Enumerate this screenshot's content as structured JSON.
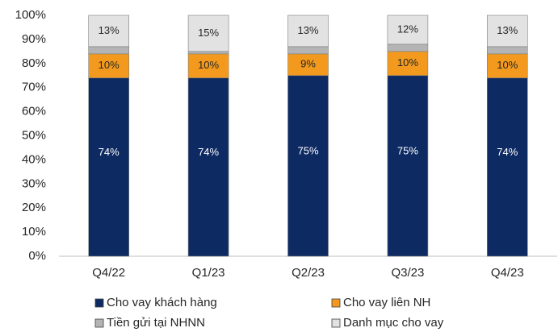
{
  "chart_data": {
    "type": "stacked_bar",
    "categories": [
      "Q4/22",
      "Q1/23",
      "Q2/23",
      "Q3/23",
      "Q4/23"
    ],
    "series": [
      {
        "name": "Cho vay khách hàng",
        "color": "#0d2a63",
        "values": [
          74,
          74,
          75,
          75,
          74
        ],
        "value_labels": [
          "74%",
          "74%",
          "75%",
          "75%",
          "74%"
        ]
      },
      {
        "name": "Cho vay liên NH",
        "color": "#f39a1e",
        "values": [
          10,
          10,
          9,
          10,
          10
        ],
        "value_labels": [
          "10%",
          "10%",
          "9%",
          "10%",
          "10%"
        ]
      },
      {
        "name": "Tiền gửi tại NHNN",
        "color": "#b4b4b4",
        "values": [
          3,
          1,
          3,
          3,
          3
        ]
      },
      {
        "name": "Danh mục cho vay",
        "color": "#e2e2e2",
        "values": [
          13,
          15,
          13,
          12,
          13
        ],
        "value_labels": [
          "13%",
          "15%",
          "13%",
          "12%",
          "13%"
        ]
      }
    ],
    "ylim": [
      0,
      100
    ],
    "yticks": [
      {
        "value": 0,
        "label": "0%"
      },
      {
        "value": 10,
        "label": "10%"
      },
      {
        "value": 20,
        "label": "20%"
      },
      {
        "value": 30,
        "label": "30%"
      },
      {
        "value": 40,
        "label": "40%"
      },
      {
        "value": 50,
        "label": "50%"
      },
      {
        "value": 60,
        "label": "60%"
      },
      {
        "value": 70,
        "label": "70%"
      },
      {
        "value": 80,
        "label": "80%"
      },
      {
        "value": 90,
        "label": "90%"
      },
      {
        "value": 100,
        "label": "100%"
      }
    ],
    "grid": false
  }
}
